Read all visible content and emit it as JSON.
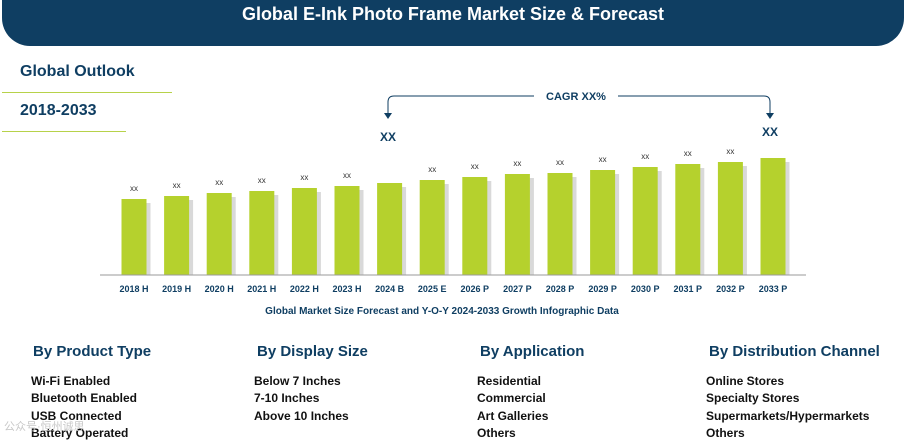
{
  "header": {
    "title": "Global E-Ink Photo Frame Market Size & Forecast"
  },
  "side": {
    "outlook": "Global Outlook",
    "period": "2018-2033"
  },
  "chart_data": {
    "type": "bar",
    "title": "Global Market Size Forecast and Y-O-Y 2024-2033 Growth Infographic Data",
    "categories": [
      "2018 H",
      "2019 H",
      "2020 H",
      "2021 H",
      "2022 H",
      "2023 H",
      "2024 B",
      "2025 E",
      "2026 P",
      "2027 P",
      "2028 P",
      "2029 P",
      "2030 P",
      "2031 P",
      "2032 P",
      "2033 P"
    ],
    "values": [
      76,
      79,
      82,
      84,
      87,
      89,
      92,
      95,
      98,
      101,
      102,
      105,
      108,
      111,
      113,
      117
    ],
    "data_labels": [
      "xx",
      "xx",
      "xx",
      "xx",
      "xx",
      "xx",
      "",
      "xx",
      "xx",
      "xx",
      "xx",
      "xx",
      "xx",
      "xx",
      "xx",
      ""
    ],
    "cagr_label": "CAGR XX%",
    "start_label": "XX",
    "end_label": "XX",
    "xlabel": "",
    "ylabel": "",
    "ylim": [
      0,
      130
    ],
    "bar_color": "#b5d12d"
  },
  "categories": [
    {
      "title": "By Product Type",
      "items": [
        "Wi-Fi Enabled",
        "Bluetooth Enabled",
        "USB Connected",
        "Battery Operated"
      ]
    },
    {
      "title": "By Display Size",
      "items": [
        "Below 7 Inches",
        "7-10 Inches",
        "Above 10 Inches"
      ]
    },
    {
      "title": "By Application",
      "items": [
        "Residential",
        "Commercial",
        "Art Galleries",
        "Others"
      ]
    },
    {
      "title": "By Distribution Channel",
      "items": [
        "Online Stores",
        "Specialty Stores",
        "Supermarkets/Hypermarkets",
        "Others"
      ]
    }
  ],
  "watermark": "公众号·恒州诚思"
}
